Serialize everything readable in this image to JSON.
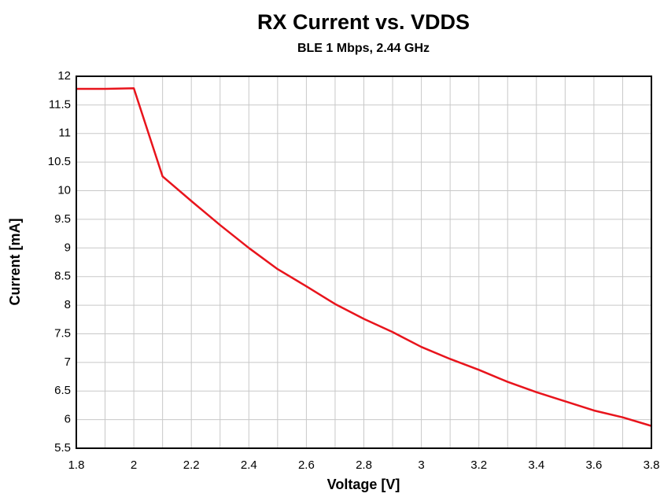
{
  "chart_data": {
    "type": "line",
    "title": "RX Current vs. VDDS",
    "subtitle": "BLE 1 Mbps, 2.44 GHz",
    "x_label": "Voltage [V]",
    "y_label": "Current [mA]",
    "x": [
      1.8,
      1.9,
      2.0,
      2.1,
      2.2,
      2.3,
      2.4,
      2.5,
      2.6,
      2.7,
      2.8,
      2.9,
      3.0,
      3.1,
      3.2,
      3.3,
      3.4,
      3.5,
      3.6,
      3.7,
      3.8
    ],
    "series": [
      {
        "name": "RX Current",
        "color": "#e8141c",
        "values": [
          11.78,
          11.78,
          11.79,
          10.25,
          9.82,
          9.4,
          9.0,
          8.63,
          8.33,
          8.02,
          7.76,
          7.53,
          7.27,
          7.06,
          6.87,
          6.66,
          6.48,
          6.32,
          6.16,
          6.04,
          5.89
        ]
      }
    ],
    "xlim": [
      1.8,
      3.8
    ],
    "xticks": [
      1.8,
      2,
      2.2,
      2.4,
      2.6,
      2.8,
      3,
      3.2,
      3.4,
      3.6,
      3.8
    ],
    "xminorticks": [
      1.9,
      2.1,
      2.3,
      2.5,
      2.7,
      2.9,
      3.1,
      3.3,
      3.5,
      3.7
    ],
    "ylim": [
      5.5,
      12
    ],
    "yticks": [
      5.5,
      6,
      6.5,
      7,
      7.5,
      8,
      8.5,
      9,
      9.5,
      10,
      10.5,
      11,
      11.5,
      12
    ],
    "grid": true
  }
}
